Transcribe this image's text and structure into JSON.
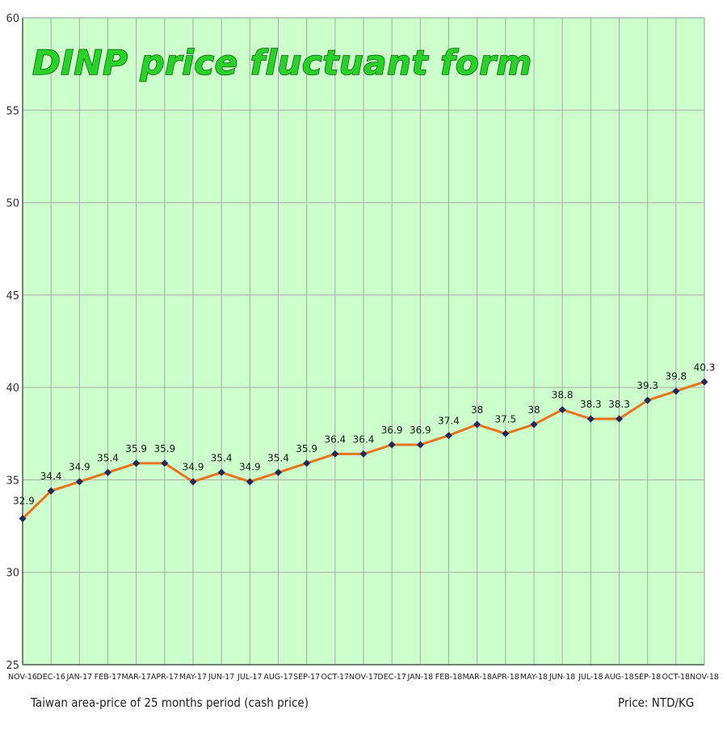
{
  "chart_data": {
    "type": "line",
    "title": "DINP price fluctuant form",
    "categories": [
      "NOV-16",
      "DEC-16",
      "JAN-17",
      "FEB-17",
      "MAR-17",
      "APR-17",
      "MAY-17",
      "JUN-17",
      "JUL-17",
      "AUG-17",
      "SEP-17",
      "OCT-17",
      "NOV-17",
      "DEC-17",
      "JAN-18",
      "FEB-18",
      "MAR-18",
      "APR-18",
      "MAY-18",
      "JUN-18",
      "JUL-18",
      "AUG-18",
      "SEP-18",
      "OCT-18",
      "NOV-18"
    ],
    "series": [
      {
        "values": [
          32.9,
          34.4,
          34.9,
          35.4,
          35.9,
          35.9,
          34.9,
          35.4,
          34.9,
          35.4,
          35.9,
          36.4,
          36.4,
          36.9,
          36.9,
          37.4,
          38,
          37.5,
          38,
          38.8,
          38.3,
          38.3,
          39.3,
          39.8,
          40.3
        ],
        "labels": [
          "32.9",
          "34.4",
          "34.9",
          "35.4",
          "35.9",
          "35.9",
          "34.9",
          "35.4",
          "34.9",
          "35.4",
          "35.9",
          "36.4",
          "36.4",
          "36.9",
          "36.9",
          "37.4",
          "38",
          "37.5",
          "38",
          "38.8",
          "38.3",
          "38.3",
          "39.3",
          "39.8",
          "40.3"
        ]
      }
    ],
    "ylim": [
      25,
      60
    ],
    "yticks": [
      "25",
      "30",
      "35",
      "40",
      "45",
      "50",
      "55",
      "60"
    ],
    "grid": true,
    "colors": {
      "background": "#ccffcc",
      "line": "#e8731c",
      "marker": "#1f2a5a",
      "grid": "#a8a8a8",
      "title_fill": "#2ad12a"
    }
  },
  "footer": {
    "left_text": "Taiwan area-price of 25 months period (cash price)",
    "right_text": "Price: NTD/KG"
  }
}
